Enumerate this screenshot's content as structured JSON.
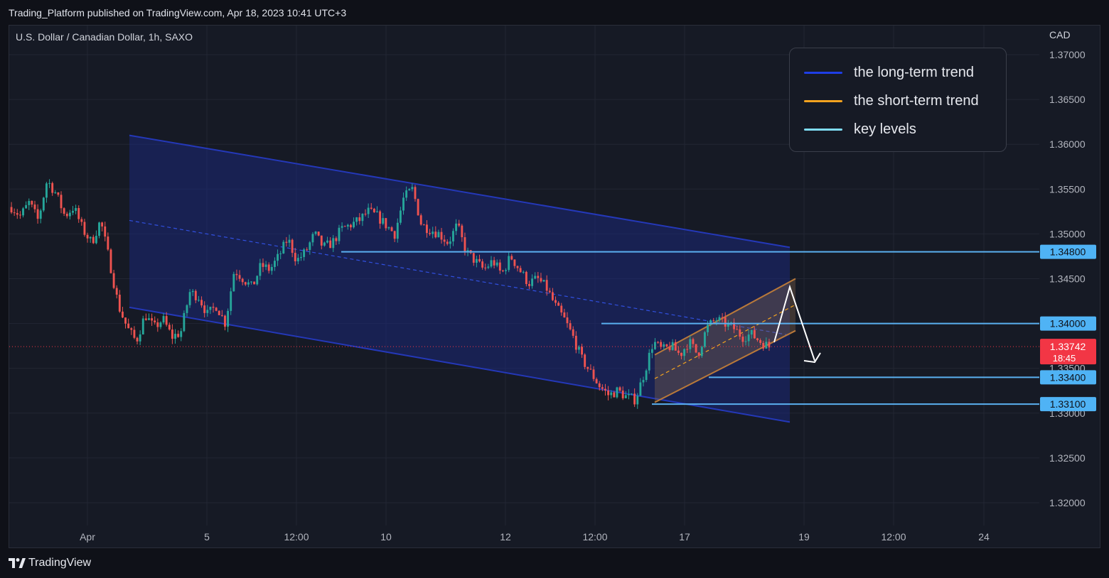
{
  "header": {
    "published_line": "Trading_Platform published on TradingView.com, Apr 18, 2023 10:41 UTC+3"
  },
  "chart_header": {
    "symbol_line": "U.S. Dollar / Canadian Dollar, 1h, SAXO",
    "currency": "CAD"
  },
  "legend": {
    "items": [
      {
        "label": "the long-term trend",
        "color": "#1e3ee6"
      },
      {
        "label": "the short-term trend",
        "color": "#f4a31f"
      },
      {
        "label": "key levels",
        "color": "#7fdcf5"
      }
    ]
  },
  "footer": {
    "brand": "TradingView",
    "logo_icon": "tradingview-logo-icon"
  },
  "colors": {
    "up_candle": "#26a69a",
    "down_candle": "#ef5350",
    "long_channel_line": "#2438b8",
    "long_channel_fill": "#1b2a8a",
    "short_channel_line": "#b9793a",
    "key_level": "#5ab0f0",
    "last_price_badge": "#f23645"
  },
  "chart_data": {
    "type": "candlestick",
    "title": "U.S. Dollar / Canadian Dollar, 1h, SAXO",
    "ylabel": "CAD",
    "ylim": [
      1.3165,
      1.3725
    ],
    "y_ticks": [
      "1.37000",
      "1.36500",
      "1.36000",
      "1.35500",
      "1.35000",
      "1.34500",
      "1.34000",
      "1.33500",
      "1.33000",
      "1.32500",
      "1.32000"
    ],
    "x_ticks": [
      "Apr",
      "5",
      "12:00",
      "10",
      "12",
      "12:00",
      "17",
      "19",
      "12:00",
      "24"
    ],
    "grid": true,
    "key_levels": [
      {
        "label": "1.34800",
        "value": 1.348
      },
      {
        "label": "1.34000",
        "value": 1.34
      },
      {
        "label": "1.33400",
        "value": 1.334
      },
      {
        "label": "1.33100",
        "value": 1.331
      }
    ],
    "last_price": {
      "label": "1.33742",
      "countdown": "18:45",
      "value": 1.33742
    },
    "price_path": [
      [
        1.353,
        1.352,
        1.3535,
        1.3515,
        1.356,
        1.3545,
        1.352,
        1.353,
        1.3505,
        1.349,
        1.3515,
        1.347,
        1.342,
        1.3395,
        1.338,
        1.341,
        1.3395,
        1.3405,
        1.3385
      ],
      [
        1.339,
        1.3435,
        1.343,
        1.341,
        1.342,
        1.34,
        1.346,
        1.345,
        1.344,
        1.3465,
        1.346,
        1.3475,
        1.3495,
        1.347,
        1.348,
        1.35,
        1.3485,
        1.349,
        1.3505
      ],
      [
        1.351,
        1.3515,
        1.3525,
        1.352,
        1.351,
        1.35,
        1.354,
        1.355,
        1.351,
        1.3505,
        1.35,
        1.349,
        1.351,
        1.348,
        1.347,
        1.346,
        1.347,
        1.3455,
        1.3475
      ],
      [
        1.346,
        1.3445,
        1.345,
        1.344,
        1.342,
        1.3405,
        1.3385,
        1.336,
        1.3345,
        1.333,
        1.332,
        1.3325,
        1.3318,
        1.3315,
        1.3345,
        1.338,
        1.337,
        1.3375,
        1.3365
      ],
      [
        1.338,
        1.3365,
        1.3395,
        1.3405,
        1.34,
        1.3395,
        1.3385,
        1.3388,
        1.338,
        1.3374
      ]
    ],
    "long_channel": {
      "upper": [
        [
          1.361,
          "Apr 3"
        ],
        [
          1.3485,
          "Apr 18"
        ]
      ],
      "lower": [
        [
          1.3418,
          "Apr 3"
        ],
        [
          1.329,
          "Apr 18"
        ]
      ],
      "mid": [
        [
          1.3515,
          "Apr 3"
        ],
        [
          1.3387,
          "Apr 18"
        ]
      ]
    },
    "short_channel": {
      "upper": [
        [
          1.3365,
          "Apr 17"
        ],
        [
          1.345,
          "Apr 18"
        ]
      ],
      "lower": [
        [
          1.3312,
          "Apr 17"
        ],
        [
          1.3392,
          "Apr 18"
        ]
      ]
    }
  }
}
